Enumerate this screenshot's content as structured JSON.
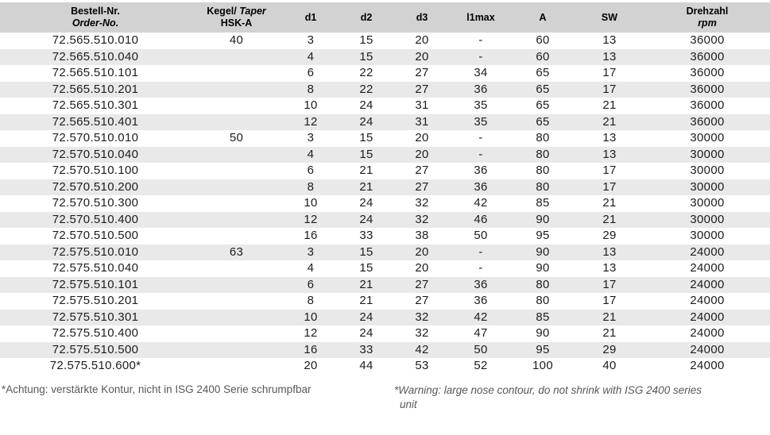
{
  "table": {
    "header": {
      "order_no": {
        "line1": "Bestell-Nr.",
        "line2": "Order-No."
      },
      "taper": {
        "line1_regular": "Kegel/",
        "line1_italic": " Taper",
        "line2": "HSK-A"
      },
      "d1": "d1",
      "d2": "d2",
      "d3": "d3",
      "l1max": "l1max",
      "a": "A",
      "sw": "SW",
      "speed": {
        "line1": "Drehzahl",
        "line2": "rpm"
      }
    },
    "rows": [
      [
        "72.565.510.010",
        "40",
        "3",
        "15",
        "20",
        "-",
        "60",
        "13",
        "36000"
      ],
      [
        "72.565.510.040",
        "",
        "4",
        "15",
        "20",
        "-",
        "60",
        "13",
        "36000"
      ],
      [
        "72.565.510.101",
        "",
        "6",
        "22",
        "27",
        "34",
        "65",
        "17",
        "36000"
      ],
      [
        "72.565.510.201",
        "",
        "8",
        "22",
        "27",
        "36",
        "65",
        "17",
        "36000"
      ],
      [
        "72.565.510.301",
        "",
        "10",
        "24",
        "31",
        "35",
        "65",
        "21",
        "36000"
      ],
      [
        "72.565.510.401",
        "",
        "12",
        "24",
        "31",
        "35",
        "65",
        "21",
        "36000"
      ],
      [
        "72.570.510.010",
        "50",
        "3",
        "15",
        "20",
        "-",
        "80",
        "13",
        "30000"
      ],
      [
        "72.570.510.040",
        "",
        "4",
        "15",
        "20",
        "-",
        "80",
        "13",
        "30000"
      ],
      [
        "72.570.510.100",
        "",
        "6",
        "21",
        "27",
        "36",
        "80",
        "17",
        "30000"
      ],
      [
        "72.570.510.200",
        "",
        "8",
        "21",
        "27",
        "36",
        "80",
        "17",
        "30000"
      ],
      [
        "72.570.510.300",
        "",
        "10",
        "24",
        "32",
        "42",
        "85",
        "21",
        "30000"
      ],
      [
        "72.570.510.400",
        "",
        "12",
        "24",
        "32",
        "46",
        "90",
        "21",
        "30000"
      ],
      [
        "72.570.510.500",
        "",
        "16",
        "33",
        "38",
        "50",
        "95",
        "29",
        "30000"
      ],
      [
        "72.575.510.010",
        "63",
        "3",
        "15",
        "20",
        "-",
        "90",
        "13",
        "24000"
      ],
      [
        "72.575.510.040",
        "",
        "4",
        "15",
        "20",
        "-",
        "90",
        "13",
        "24000"
      ],
      [
        "72.575.510.101",
        "",
        "6",
        "21",
        "27",
        "36",
        "80",
        "17",
        "24000"
      ],
      [
        "72.575.510.201",
        "",
        "8",
        "21",
        "27",
        "36",
        "80",
        "17",
        "24000"
      ],
      [
        "72.575.510.301",
        "",
        "10",
        "24",
        "32",
        "42",
        "85",
        "21",
        "24000"
      ],
      [
        "72.575.510.400",
        "",
        "12",
        "24",
        "32",
        "47",
        "90",
        "21",
        "24000"
      ],
      [
        "72.575.510.500",
        "",
        "16",
        "33",
        "42",
        "50",
        "95",
        "29",
        "24000"
      ],
      [
        "72.575.510.600*",
        "",
        "20",
        "44",
        "53",
        "52",
        "100",
        "40",
        "24000"
      ]
    ]
  },
  "footnotes": {
    "german": "*Achtung: verstärkte Kontur, nicht in ISG 2400 Serie schrumpfbar",
    "english": "*Warning: large nose contour, do not shrink with ISG 2400 series unit"
  },
  "colors": {
    "header_bg": "#d2d2d2",
    "stripe_bg": "#e9e9e9",
    "text": "#1d1d1d",
    "footnote_text": "#585858"
  }
}
